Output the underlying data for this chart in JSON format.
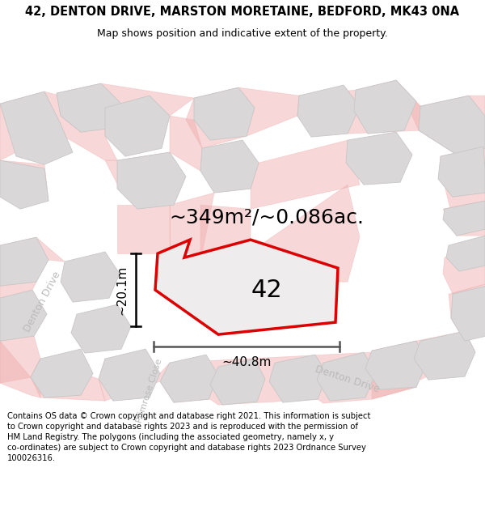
{
  "title_line1": "42, DENTON DRIVE, MARSTON MORETAINE, BEDFORD, MK43 0NA",
  "title_line2": "Map shows position and indicative extent of the property.",
  "footer_text": "Contains OS data © Crown copyright and database right 2021. This information is subject to Crown copyright and database rights 2023 and is reproduced with the permission of HM Land Registry. The polygons (including the associated geometry, namely x, y co-ordinates) are subject to Crown copyright and database rights 2023 Ordnance Survey 100026316.",
  "area_label": "~349m²/~0.086ac.",
  "number_label": "42",
  "width_label": "~40.8m",
  "height_label": "~20.1m",
  "bg_color": "#f2f0f0",
  "plot_color": "#dd0000",
  "plot_fill": "#eeecec",
  "road_stroke": "#f0b0b0",
  "building_fill": "#d9d7d7",
  "building_stroke": "#c8c6c6",
  "title_fontsize": 10.5,
  "subtitle_fontsize": 9,
  "footer_fontsize": 7.2,
  "area_fontsize": 18,
  "number_fontsize": 22,
  "dim_fontsize": 11,
  "road_label_color": "#bbbbbb",
  "road_label_fontsize": 9
}
